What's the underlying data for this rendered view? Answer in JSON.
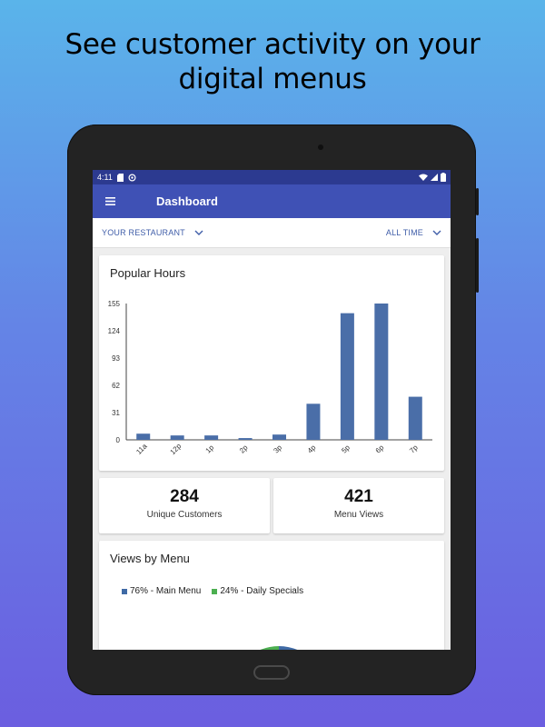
{
  "promo": {
    "line1": "See customer activity on your",
    "line2": "digital menus"
  },
  "status_bar": {
    "time": "4:11"
  },
  "app_bar": {
    "menu_icon": "hamburger-menu-icon",
    "title": "Dashboard"
  },
  "filters": {
    "restaurant": "YOUR RESTAURANT",
    "time_range": "ALL TIME"
  },
  "popular_hours": {
    "title": "Popular Hours"
  },
  "stats": {
    "unique_customers": {
      "value": "284",
      "label": "Unique Customers"
    },
    "menu_views": {
      "value": "421",
      "label": "Menu Views"
    }
  },
  "views_by_menu": {
    "title": "Views by Menu",
    "legend": [
      {
        "label": "76% - Main Menu",
        "color": "#3f6aa5"
      },
      {
        "label": "24% - Daily Specials",
        "color": "#4caf50"
      }
    ]
  },
  "colors": {
    "accent": "#3f51b5",
    "bar": "#4a6ea8",
    "pie_main": "#3f6aa5",
    "pie_specials": "#4caf50"
  },
  "chart_data": [
    {
      "type": "bar",
      "title": "Popular Hours",
      "categories": [
        "11a",
        "12p",
        "1p",
        "2p",
        "3p",
        "4p",
        "5p",
        "6p",
        "7p"
      ],
      "values": [
        7,
        5,
        5,
        2,
        6,
        41,
        144,
        155,
        49
      ],
      "yticks": [
        "0",
        "31",
        "62",
        "93",
        "124",
        "155"
      ],
      "ylim": [
        0,
        155
      ],
      "xlabel": "",
      "ylabel": "",
      "grid": false
    },
    {
      "type": "pie",
      "title": "Views by Menu",
      "categories": [
        "Main Menu",
        "Daily Specials"
      ],
      "values": [
        76,
        24
      ],
      "legend_placement": "top"
    }
  ]
}
